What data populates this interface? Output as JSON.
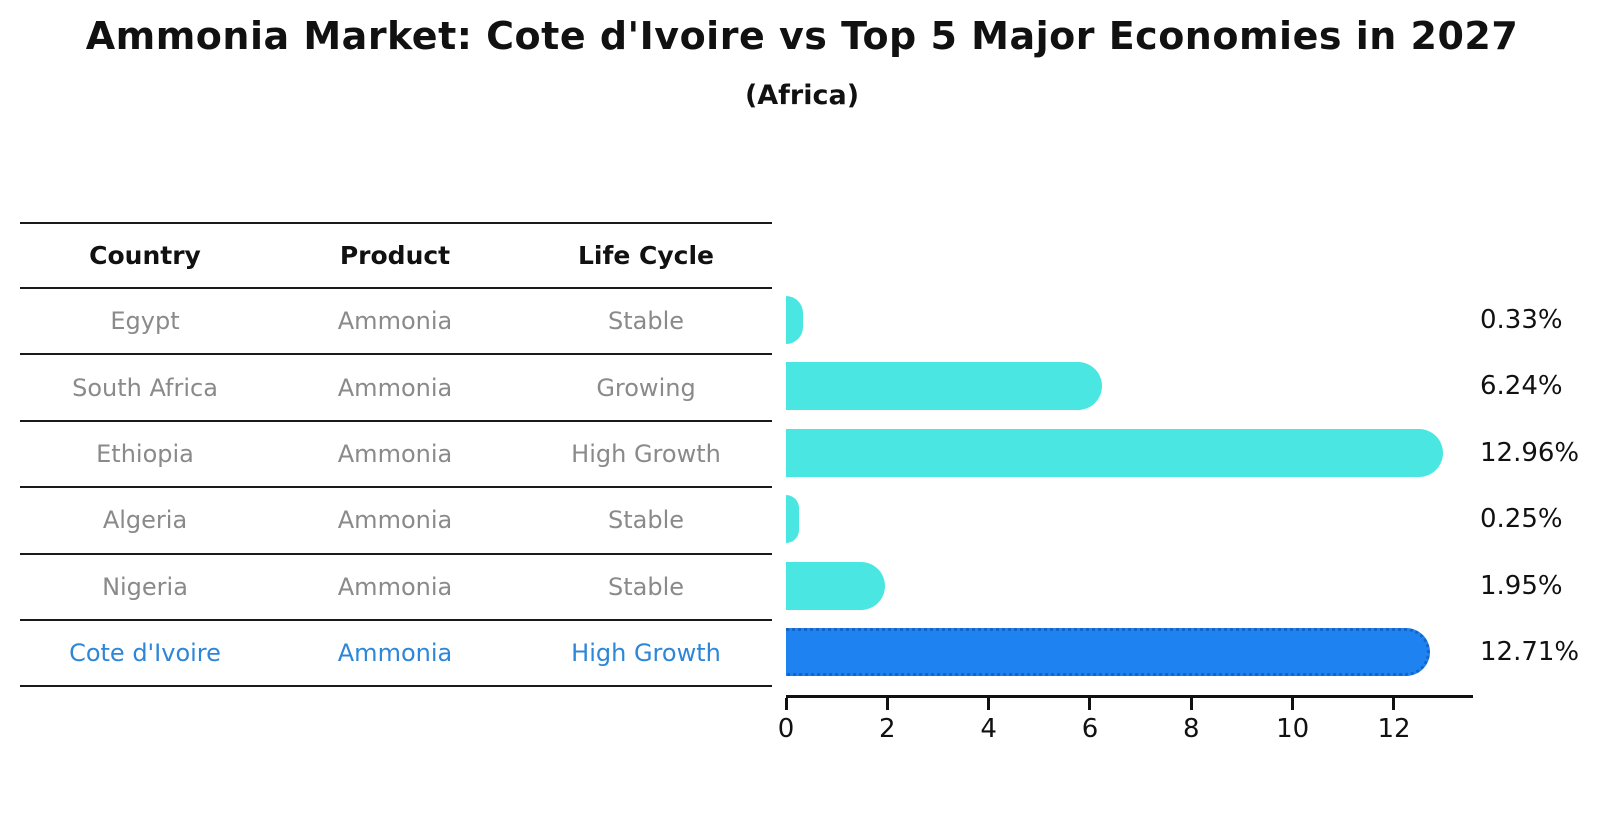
{
  "title": "Ammonia Market: Cote d'Ivoire vs Top 5 Major Economies in 2027",
  "subtitle": "(Africa)",
  "table": {
    "headers": [
      "Country",
      "Product",
      "Life Cycle"
    ],
    "rows": [
      {
        "country": "Egypt",
        "product": "Ammonia",
        "life_cycle": "Stable"
      },
      {
        "country": "South Africa",
        "product": "Ammonia",
        "life_cycle": "Growing"
      },
      {
        "country": "Ethiopia",
        "product": "Ammonia",
        "life_cycle": "High Growth"
      },
      {
        "country": "Algeria",
        "product": "Ammonia",
        "life_cycle": "Stable"
      },
      {
        "country": "Nigeria",
        "product": "Ammonia",
        "life_cycle": "Stable"
      },
      {
        "country": "Cote d'Ivoire",
        "product": "Ammonia",
        "life_cycle": "High Growth"
      }
    ]
  },
  "chart_data": {
    "type": "bar",
    "orientation": "horizontal",
    "title": "Ammonia Market: Cote d'Ivoire vs Top 5 Major Economies in 2027",
    "subtitle": "(Africa)",
    "categories": [
      "Egypt",
      "South Africa",
      "Ethiopia",
      "Algeria",
      "Nigeria",
      "Cote d'Ivoire"
    ],
    "values": [
      0.33,
      6.24,
      12.96,
      0.25,
      1.95,
      12.71
    ],
    "value_labels": [
      "0.33%",
      "6.24%",
      "12.96%",
      "0.25%",
      "1.95%",
      "12.71%"
    ],
    "xticks": [
      0,
      2,
      4,
      6,
      8,
      10,
      12
    ],
    "xlim": [
      0,
      13.5
    ],
    "grid": false,
    "legend": false,
    "bar_color": "#4ae6e2",
    "highlight_index": 5,
    "highlight_bar_color": "#1e82f0",
    "highlight_text_color": "#2e86d8"
  }
}
